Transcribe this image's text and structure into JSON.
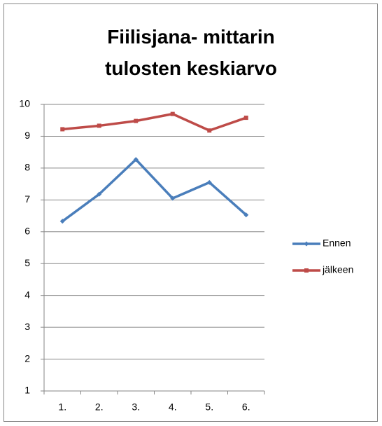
{
  "chart_data": {
    "type": "line",
    "title": "Fiilisjana- mittarin tulosten keskiarvo",
    "categories": [
      "1.",
      "2.",
      "3.",
      "4.",
      "5.",
      "6."
    ],
    "series": [
      {
        "name": "Ennen",
        "color": "#4a7ebb",
        "values": [
          6.33,
          7.18,
          8.27,
          7.05,
          7.55,
          6.53
        ]
      },
      {
        "name": "jälkeen",
        "color": "#be4b48",
        "values": [
          9.22,
          9.33,
          9.48,
          9.7,
          9.18,
          9.58
        ]
      }
    ],
    "ylim": [
      1,
      10
    ],
    "yticks": [
      1,
      2,
      3,
      4,
      5,
      6,
      7,
      8,
      9,
      10
    ],
    "grid": true,
    "legend": "right"
  }
}
